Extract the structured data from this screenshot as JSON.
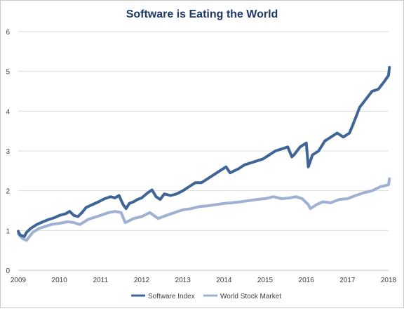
{
  "chart_data": {
    "type": "line",
    "title": "Software is Eating the World",
    "xlabel": "",
    "ylabel": "",
    "xlim": [
      2009,
      2018
    ],
    "ylim": [
      0,
      6
    ],
    "x_ticks": [
      2009,
      2010,
      2011,
      2012,
      2013,
      2014,
      2015,
      2016,
      2017,
      2018
    ],
    "y_ticks": [
      0,
      1,
      2,
      3,
      4,
      5,
      6
    ],
    "grid": "horizontal",
    "legend": "bottom",
    "series": [
      {
        "name": "Software Index",
        "color": "#3f6597",
        "x": [
          2009.0,
          2009.05,
          2009.15,
          2009.2,
          2009.3,
          2009.45,
          2009.6,
          2009.75,
          2009.9,
          2010.0,
          2010.15,
          2010.25,
          2010.35,
          2010.45,
          2010.55,
          2010.65,
          2010.8,
          2010.95,
          2011.1,
          2011.25,
          2011.35,
          2011.45,
          2011.55,
          2011.62,
          2011.7,
          2011.8,
          2011.9,
          2012.0,
          2012.15,
          2012.25,
          2012.35,
          2012.45,
          2012.55,
          2012.7,
          2012.85,
          2013.0,
          2013.15,
          2013.3,
          2013.45,
          2013.6,
          2013.75,
          2013.9,
          2014.05,
          2014.15,
          2014.25,
          2014.35,
          2014.5,
          2014.65,
          2014.8,
          2014.95,
          2015.1,
          2015.25,
          2015.4,
          2015.55,
          2015.65,
          2015.7,
          2015.85,
          2016.0,
          2016.05,
          2016.15,
          2016.3,
          2016.45,
          2016.6,
          2016.75,
          2016.9,
          2017.05,
          2017.15,
          2017.3,
          2017.45,
          2017.6,
          2017.75,
          2017.9,
          2018.0,
          2018.02
        ],
        "values": [
          0.98,
          0.88,
          0.85,
          0.95,
          1.05,
          1.15,
          1.22,
          1.28,
          1.33,
          1.38,
          1.42,
          1.48,
          1.38,
          1.35,
          1.45,
          1.58,
          1.65,
          1.72,
          1.8,
          1.85,
          1.82,
          1.88,
          1.65,
          1.55,
          1.68,
          1.72,
          1.78,
          1.82,
          1.95,
          2.02,
          1.85,
          1.78,
          1.92,
          1.88,
          1.92,
          2.0,
          2.1,
          2.2,
          2.2,
          2.3,
          2.4,
          2.5,
          2.6,
          2.45,
          2.5,
          2.55,
          2.65,
          2.7,
          2.75,
          2.8,
          2.9,
          3.0,
          3.05,
          3.1,
          2.85,
          2.9,
          3.1,
          3.2,
          2.6,
          2.9,
          3.0,
          3.25,
          3.35,
          3.45,
          3.35,
          3.45,
          3.7,
          4.1,
          4.3,
          4.5,
          4.55,
          4.75,
          4.9,
          5.1
        ]
      },
      {
        "name": "World Stock Market",
        "color": "#9eb1d3",
        "x": [
          2009.0,
          2009.1,
          2009.2,
          2009.35,
          2009.5,
          2009.65,
          2009.8,
          2010.0,
          2010.2,
          2010.35,
          2010.5,
          2010.7,
          2010.85,
          2011.0,
          2011.2,
          2011.35,
          2011.5,
          2011.6,
          2011.65,
          2011.8,
          2012.0,
          2012.2,
          2012.4,
          2012.6,
          2012.8,
          2013.0,
          2013.2,
          2013.4,
          2013.6,
          2013.8,
          2014.0,
          2014.2,
          2014.4,
          2014.6,
          2014.8,
          2015.0,
          2015.2,
          2015.4,
          2015.6,
          2015.75,
          2015.9,
          2016.05,
          2016.1,
          2016.25,
          2016.4,
          2016.6,
          2016.8,
          2017.0,
          2017.2,
          2017.4,
          2017.6,
          2017.8,
          2018.0,
          2018.02
        ],
        "values": [
          0.92,
          0.8,
          0.75,
          0.95,
          1.05,
          1.1,
          1.15,
          1.18,
          1.22,
          1.2,
          1.15,
          1.28,
          1.33,
          1.38,
          1.45,
          1.48,
          1.45,
          1.2,
          1.22,
          1.3,
          1.35,
          1.45,
          1.3,
          1.38,
          1.45,
          1.52,
          1.55,
          1.6,
          1.62,
          1.65,
          1.68,
          1.7,
          1.72,
          1.75,
          1.78,
          1.8,
          1.85,
          1.8,
          1.82,
          1.85,
          1.8,
          1.65,
          1.55,
          1.65,
          1.72,
          1.7,
          1.78,
          1.8,
          1.88,
          1.95,
          2.0,
          2.1,
          2.15,
          2.3
        ]
      }
    ]
  }
}
